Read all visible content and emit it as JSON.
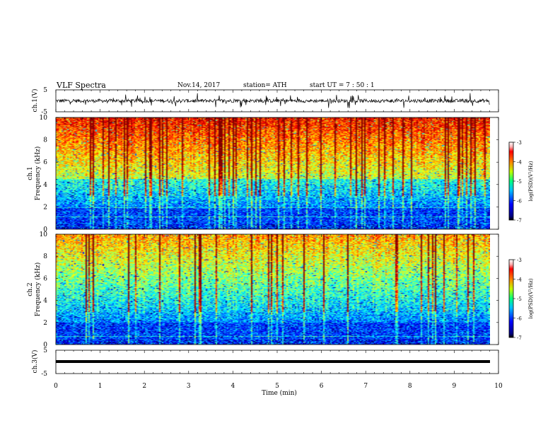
{
  "header": {
    "title": "VLF  Spectra",
    "date": "Nov.14, 2017",
    "station": "station= ATH",
    "start": "start  UT  =   7  : 50 : 1"
  },
  "chart_data": [
    {
      "type": "line",
      "name": "ch1-waveform",
      "ylabel": "ch.1(V)",
      "ylim": [
        -5,
        5
      ],
      "yticks": [
        "5",
        "-5"
      ],
      "xlim": [
        0,
        10
      ],
      "color": "#000000"
    },
    {
      "type": "heatmap",
      "name": "ch1-spectrogram",
      "ylabel_line1": "ch.1",
      "ylabel_line2": "Frequency  (kHz)",
      "ylim": [
        0,
        10
      ],
      "yticks": [
        "10",
        "8",
        "6",
        "4",
        "2",
        "0"
      ],
      "xlim": [
        0,
        10
      ],
      "data_end_min": 9.8,
      "colorbar": {
        "label": "log(PSD)(V²/Hz)",
        "range": [
          -7,
          -3
        ],
        "ticks": [
          "-3",
          "-4",
          "-5",
          "-6",
          "-7"
        ]
      }
    },
    {
      "type": "heatmap",
      "name": "ch2-spectrogram",
      "ylabel_line1": "ch.2",
      "ylabel_line2": "Frequency  (kHz)",
      "ylim": [
        0,
        10
      ],
      "yticks": [
        "10",
        "8",
        "6",
        "4",
        "2",
        "0"
      ],
      "xlim": [
        0,
        10
      ],
      "data_end_min": 9.8,
      "colorbar": {
        "label": "log(PSD)(V²/Hz)",
        "range": [
          -7,
          -3
        ],
        "ticks": [
          "-3",
          "-4",
          "-5",
          "-6",
          "-7"
        ]
      }
    },
    {
      "type": "line",
      "name": "ch3-waveform",
      "ylabel": "ch.3(V)",
      "ylim": [
        -5,
        5
      ],
      "yticks": [
        "5",
        "-5"
      ],
      "xlim": [
        0,
        10
      ],
      "color": "#000000"
    }
  ],
  "xaxis": {
    "label": "Time  (min)",
    "ticks": [
      "0",
      "1",
      "2",
      "3",
      "4",
      "5",
      "6",
      "7",
      "8",
      "9",
      "10"
    ]
  }
}
